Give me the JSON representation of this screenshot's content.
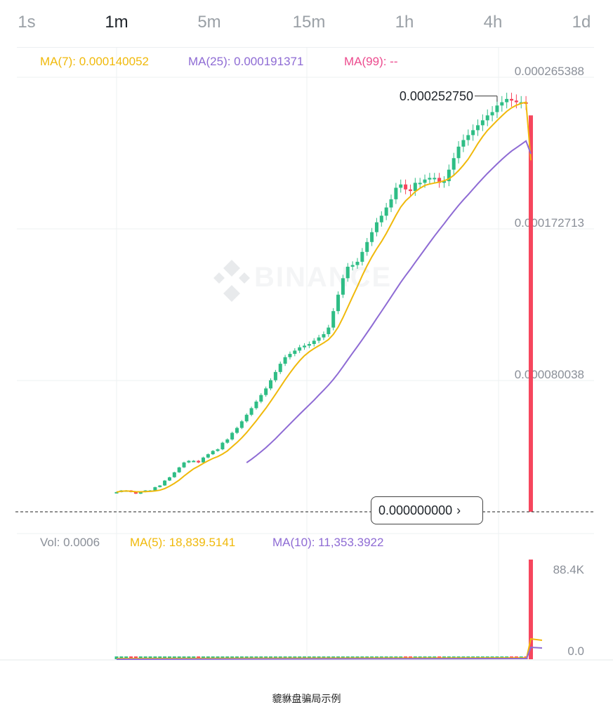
{
  "tabs": [
    {
      "label": "1s",
      "active": false
    },
    {
      "label": "1m",
      "active": true
    },
    {
      "label": "5m",
      "active": false
    },
    {
      "label": "15m",
      "active": false
    },
    {
      "label": "1h",
      "active": false
    },
    {
      "label": "4h",
      "active": false
    },
    {
      "label": "1d",
      "active": false
    }
  ],
  "legend": {
    "ma7": "MA(7): 0.000140052",
    "ma25": "MA(25): 0.000191371",
    "ma99": "MA(99): --"
  },
  "volume_legend": {
    "vol": "Vol: 0.0006",
    "ma5": "MA(5): 18,839.5141",
    "ma10": "MA(10): 11,353.3922"
  },
  "watermark": "BINANCE",
  "high_label": "0.000252750",
  "current_price": "0.000000000",
  "caption": "貔貅盘骗局示例",
  "colors": {
    "up": "#2ebd85",
    "down": "#f6465d",
    "ma7": "#f0b90b",
    "ma25": "#8e6bd4",
    "ma99": "#ec4b8e",
    "axis_text": "#8a8f98",
    "grid": "#eef0f2"
  },
  "chart_data": {
    "type": "candlestick",
    "price_axis": {
      "ticks": [
        {
          "value": 0.000265388,
          "label": "0.000265388"
        },
        {
          "value": 0.000172713,
          "label": "0.000172713"
        },
        {
          "value": 8.0038e-05,
          "label": "0.000080038"
        }
      ],
      "ylim": [
        0.0,
        0.00027
      ]
    },
    "volume_axis": {
      "ticks": [
        {
          "value": 88400,
          "label": "88.4K"
        },
        {
          "value": 0,
          "label": "0.0"
        }
      ]
    },
    "close_prices": [
      1.2e-05,
      1.3e-05,
      1.3e-05,
      1.2e-05,
      1.1e-05,
      1.2e-05,
      1.3e-05,
      1.3e-05,
      1.5e-05,
      1.6e-05,
      1.9e-05,
      2.1e-05,
      2.4e-05,
      2.7e-05,
      3e-05,
      3.1e-05,
      3.1e-05,
      3e-05,
      3.3e-05,
      3.5e-05,
      3.7e-05,
      3.8e-05,
      4.2e-05,
      4.4e-05,
      4.8e-05,
      5.1e-05,
      5.5e-05,
      5.9e-05,
      6.3e-05,
      6.7e-05,
      7.1e-05,
      7.5e-05,
      8e-05,
      8.5e-05,
      9e-05,
      9.4e-05,
      9.6e-05,
      9.8e-05,
      0.0001,
      0.000101,
      0.000102,
      0.000104,
      0.000106,
      0.000108,
      0.000112,
      0.000122,
      0.000132,
      0.000142,
      0.000149,
      0.00015,
      0.000152,
      0.000158,
      0.000164,
      0.00017,
      0.000176,
      0.00018,
      0.000185,
      0.00019,
      0.000197,
      0.000199,
      0.000196,
      0.000195,
      0.0002,
      0.0002,
      0.000202,
      0.000203,
      0.000203,
      0.0002,
      0.000201,
      0.000208,
      0.000215,
      0.000222,
      0.000226,
      0.000229,
      0.000232,
      0.000235,
      0.000238,
      0.000241,
      0.000243,
      0.000247,
      0.000249,
      0.000251,
      0.00025,
      0.000249,
      0.000249,
      0.000248,
      0.0
    ],
    "ma7_last": 0.000140052,
    "ma25_last": 0.000191371,
    "high": 0.00025275,
    "volume_peak": 88400
  }
}
